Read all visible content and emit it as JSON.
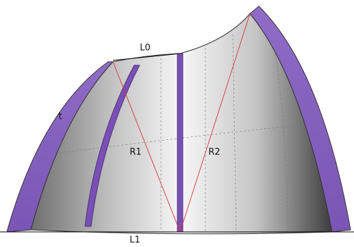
{
  "labels": {
    "top_length": "L0",
    "bottom_length": "L1",
    "left_radius": "R1",
    "right_radius": "R2",
    "thickness": "t"
  }
}
